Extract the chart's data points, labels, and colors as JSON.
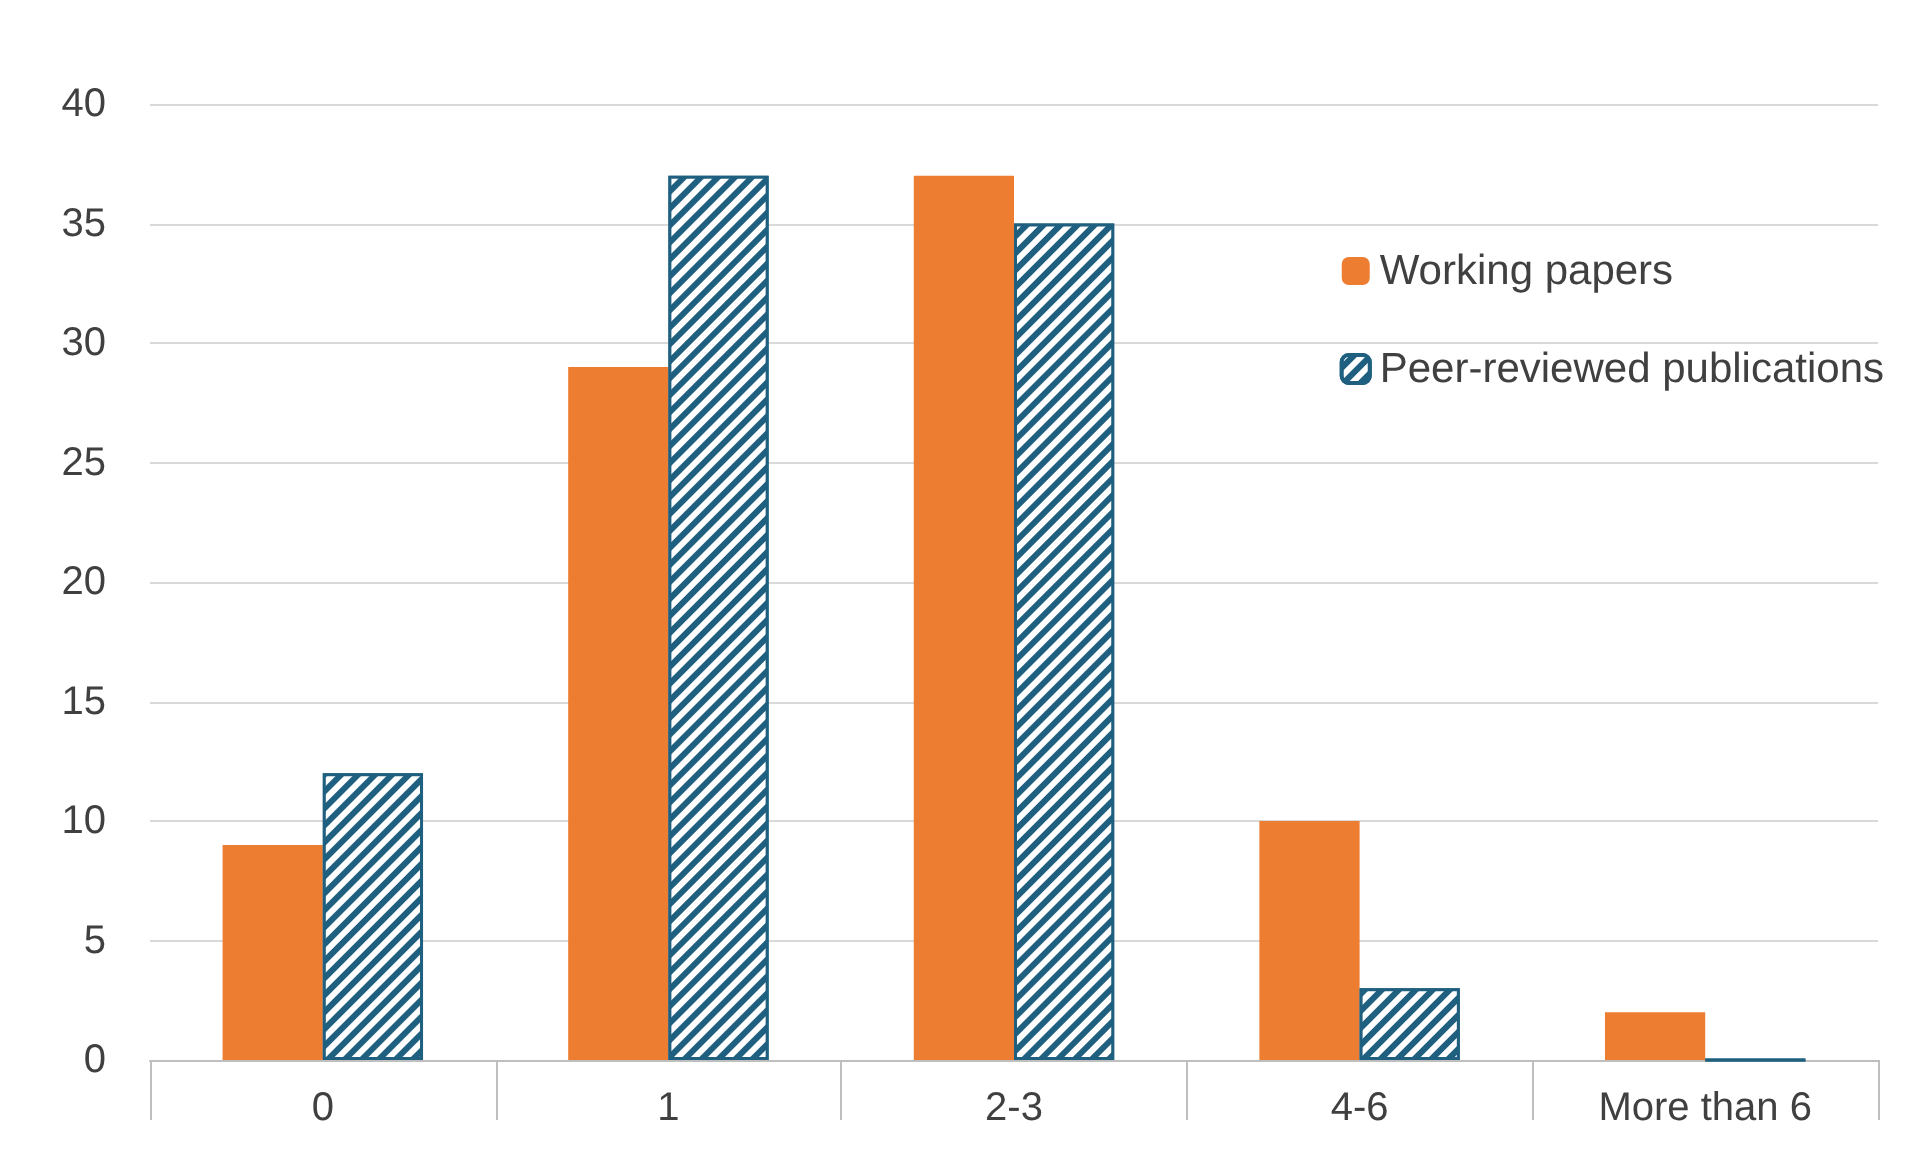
{
  "chart_data": {
    "type": "bar",
    "categories": [
      "0",
      "1",
      "2-3",
      "4-6",
      "More than 6"
    ],
    "series": [
      {
        "name": "Working papers",
        "color": "#ed7d31",
        "values": [
          9,
          29,
          37,
          10,
          2
        ]
      },
      {
        "name": "Peer-reviewed publications",
        "color": "#1f5f7f",
        "values": [
          12,
          37,
          35,
          3,
          0
        ]
      }
    ],
    "ylim": [
      0,
      40
    ],
    "yticks": [
      0,
      5,
      10,
      15,
      20,
      25,
      30,
      35,
      40
    ],
    "grid": "y",
    "legend": "right"
  }
}
